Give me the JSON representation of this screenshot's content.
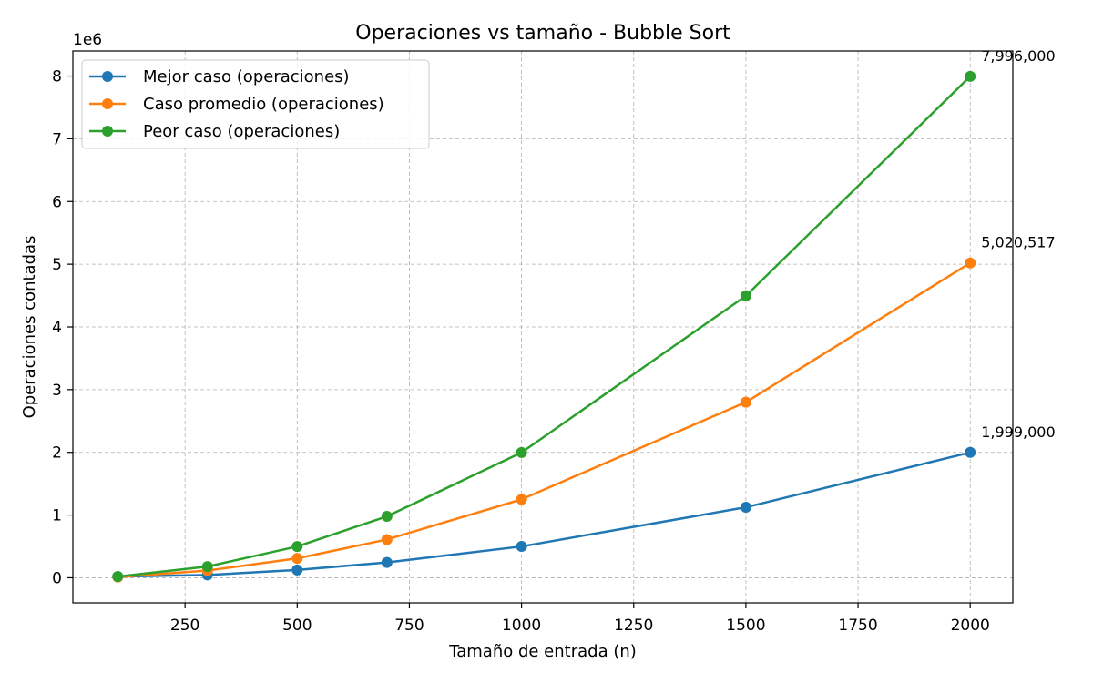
{
  "chart_data": {
    "type": "line",
    "title": "Operaciones vs tamaño - Bubble Sort",
    "xlabel": "Tamaño de entrada (n)",
    "ylabel": "Operaciones contadas",
    "y_scale_label": "1e6",
    "xlim": [
      0,
      2095
    ],
    "ylim": [
      -0.4,
      8.4
    ],
    "x_ticks": [
      250,
      500,
      750,
      1000,
      1250,
      1500,
      1750,
      2000
    ],
    "y_ticks": [
      0,
      1,
      2,
      3,
      4,
      5,
      6,
      7,
      8
    ],
    "grid": true,
    "legend_position": "top-left",
    "x": [
      100,
      300,
      500,
      700,
      1000,
      1500,
      2000
    ],
    "series": [
      {
        "name": "Mejor caso (operaciones)",
        "color": "#1f77b4",
        "values": [
          0.0198,
          0.0449,
          0.1248,
          0.2447,
          0.4995,
          1.1243,
          1.999
        ],
        "end_label": "1,999,000"
      },
      {
        "name": "Caso promedio (operaciones)",
        "color": "#ff7f0e",
        "values": [
          0.0124,
          0.115,
          0.31,
          0.61,
          1.25,
          2.8,
          5.020517
        ],
        "end_label": "5,020,517"
      },
      {
        "name": "Peor caso (operaciones)",
        "color": "#2ca02c",
        "values": [
          0.0198,
          0.1794,
          0.499,
          0.979,
          1.998,
          4.4955,
          7.996
        ],
        "end_label": "7,996,000"
      }
    ]
  }
}
